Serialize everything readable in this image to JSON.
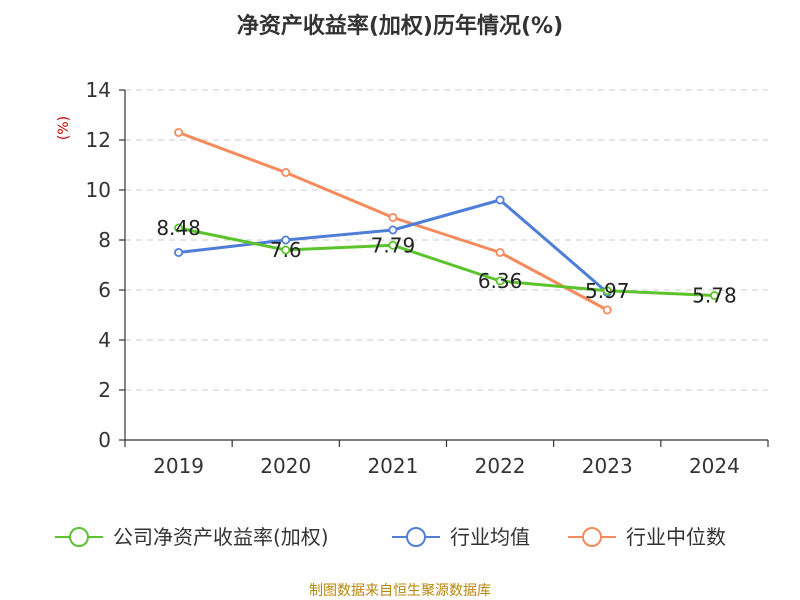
{
  "chart_data": {
    "type": "line",
    "title": "净资产收益率(加权)历年情况(%)",
    "ylabel": "(%)",
    "xlabel": "",
    "categories": [
      "2019",
      "2020",
      "2021",
      "2022",
      "2023",
      "2024"
    ],
    "ylim": [
      0,
      14
    ],
    "yticks": [
      0,
      2,
      4,
      6,
      8,
      10,
      12,
      14
    ],
    "grid": true,
    "legend_position": "bottom",
    "series": [
      {
        "name": "公司净资产收益率(加权)",
        "color": "#5cc32c",
        "values": [
          8.48,
          7.6,
          7.79,
          6.36,
          5.97,
          5.78
        ],
        "labels": [
          "8.48",
          "7.6",
          "7.79",
          "6.36",
          "5.97",
          "5.78"
        ]
      },
      {
        "name": "行业均值",
        "color": "#4f7ed8",
        "values": [
          7.5,
          8.0,
          8.4,
          9.6,
          5.9,
          null
        ]
      },
      {
        "name": "行业中位数",
        "color": "#f58b5c",
        "values": [
          12.3,
          10.7,
          8.9,
          7.5,
          5.2,
          null
        ]
      }
    ],
    "source": "制图数据来自恒生聚源数据库"
  }
}
